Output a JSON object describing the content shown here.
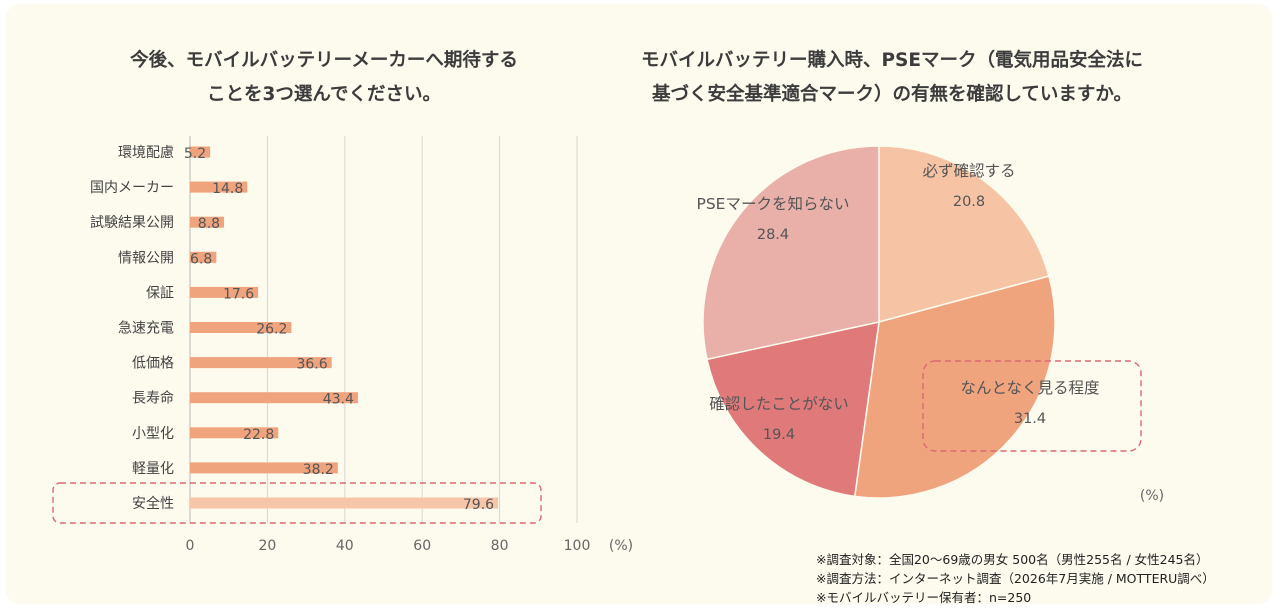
{
  "left_title": [
    "今後、モバイルバッテリーメーカーへ期待する",
    "ことを3つ選んでください。"
  ],
  "right_title": [
    "モバイルバッテリー購入時、PSEマーク（電気用品安全法に",
    "基づく安全基準適合マーク）の有無を確認していますか。"
  ],
  "chart_data": [
    {
      "type": "bar",
      "orientation": "horizontal",
      "categories": [
        "環境配慮",
        "国内メーカー",
        "試験結果公開",
        "情報公開",
        "保証",
        "急速充電",
        "低価格",
        "長寿命",
        "小型化",
        "軽量化",
        "安全性"
      ],
      "values": [
        5.2,
        14.8,
        8.8,
        6.8,
        17.6,
        26.2,
        36.6,
        43.4,
        22.8,
        38.2,
        79.6
      ],
      "xlim": [
        0,
        100
      ],
      "xticks": [
        "0",
        "20",
        "40",
        "60",
        "80",
        "100"
      ],
      "unit_label": "(%)",
      "highlight": "安全性",
      "grid": true,
      "colors": {
        "bar": "#f0a47e",
        "highlight_bar": "#f7c6a9",
        "highlight_box": "#d96a72"
      }
    },
    {
      "type": "pie",
      "slices": [
        {
          "label": "必ず確認する",
          "value": "20.8",
          "color": "#f6c4a5"
        },
        {
          "label": "なんとなく見る程度",
          "value": "31.4",
          "color": "#f0a47e"
        },
        {
          "label": "確認したことがない",
          "value": "19.4",
          "color": "#e0797a"
        },
        {
          "label": "PSEマークを知らない",
          "value": "28.4",
          "color": "#e9b0aa"
        }
      ],
      "unit_label": "(%)",
      "highlight": "なんとなく見る程度"
    }
  ],
  "notes": [
    "※調査対象：全国20〜69歳の男女 500名（男性255名 / 女性245名）",
    "※調査方法：インターネット調査（2026年7月実施 / MOTTERU調べ）",
    "※モバイルバッテリー保有者：n=250"
  ]
}
